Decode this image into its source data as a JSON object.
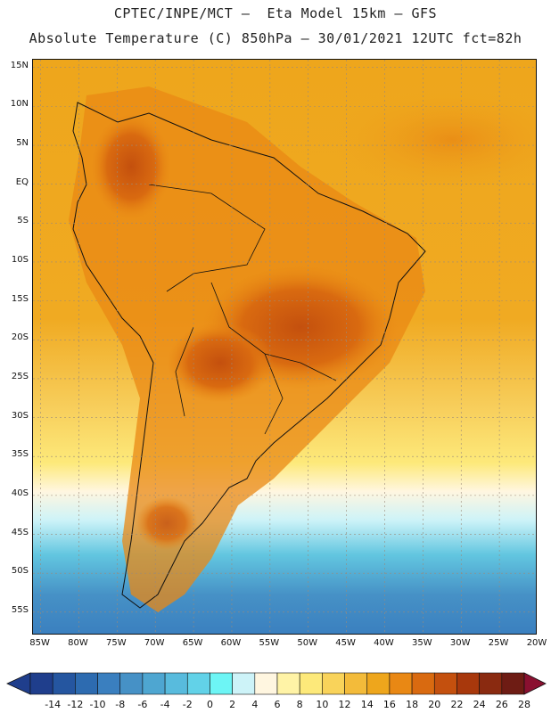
{
  "header": {
    "line1": "CPTEC/INPE/MCT –  Eta Model 15km – GFS",
    "line2": "Absolute Temperature (C) 850hPa – 30/01/2021 12UTC fct=82h"
  },
  "map": {
    "region": "South America",
    "variable": "Absolute Temperature (C) 850hPa",
    "lat_ticks": [
      "15N",
      "10N",
      "5N",
      "EQ",
      "5S",
      "10S",
      "15S",
      "20S",
      "25S",
      "30S",
      "35S",
      "40S",
      "45S",
      "50S",
      "55S"
    ],
    "lon_ticks": [
      "85W",
      "80W",
      "75W",
      "70W",
      "65W",
      "60W",
      "55W",
      "50W",
      "45W",
      "40W",
      "35W",
      "30W",
      "25W",
      "20W"
    ],
    "lat_values": [
      15,
      10,
      5,
      0,
      -5,
      -10,
      -15,
      -20,
      -25,
      -30,
      -35,
      -40,
      -45,
      -50,
      -55
    ],
    "lon_values": [
      -85,
      -80,
      -75,
      -70,
      -65,
      -60,
      -55,
      -50,
      -45,
      -40,
      -35,
      -30,
      -25,
      -20
    ],
    "extent": {
      "lon_min": -86,
      "lon_max": -20,
      "lat_min": -58,
      "lat_max": 16
    }
  },
  "colorbar": {
    "labels": [
      "-14",
      "-12",
      "-10",
      "-8",
      "-6",
      "-4",
      "-2",
      "0",
      "2",
      "4",
      "6",
      "8",
      "10",
      "12",
      "14",
      "16",
      "18",
      "20",
      "22",
      "24",
      "26",
      "28"
    ],
    "colors": [
      "#1f3e8c",
      "#2556a0",
      "#2d6bb0",
      "#3a7fbf",
      "#4691c6",
      "#4ea6d1",
      "#58bbdd",
      "#62d2e8",
      "#6df5f5",
      "#cdf3f8",
      "#fff6e0",
      "#fff3a6",
      "#fde97a",
      "#f9d35a",
      "#f3bb3a",
      "#eea61c",
      "#e98814",
      "#d96a10",
      "#c4500e",
      "#a8380c",
      "#8a2a10",
      "#6e1c14"
    ]
  }
}
